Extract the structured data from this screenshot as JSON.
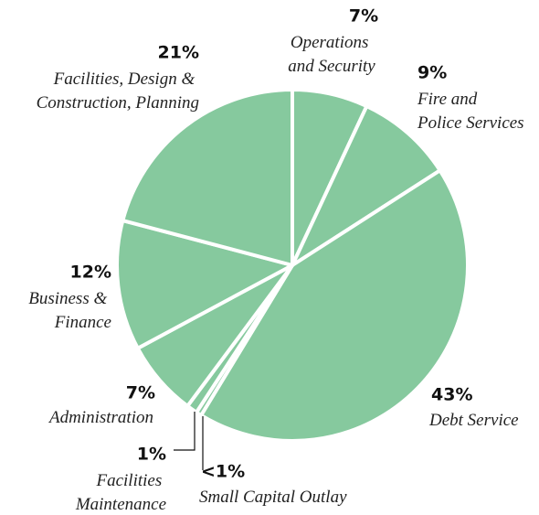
{
  "chart_data": {
    "type": "pie",
    "categories": [
      "Operations and Security",
      "Fire and Police Services",
      "Debt Service",
      "Small Capital Outlay",
      "Facilities Maintenance",
      "Administration",
      "Business & Finance",
      "Facilities, Design & Construction, Planning"
    ],
    "values": [
      7,
      9,
      43,
      0.5,
      1,
      7,
      12,
      21
    ],
    "value_labels": [
      "7%",
      "9%",
      "43%",
      "<1%",
      "1%",
      "7%",
      "12%",
      "21%"
    ],
    "color": "#86c99e"
  }
}
